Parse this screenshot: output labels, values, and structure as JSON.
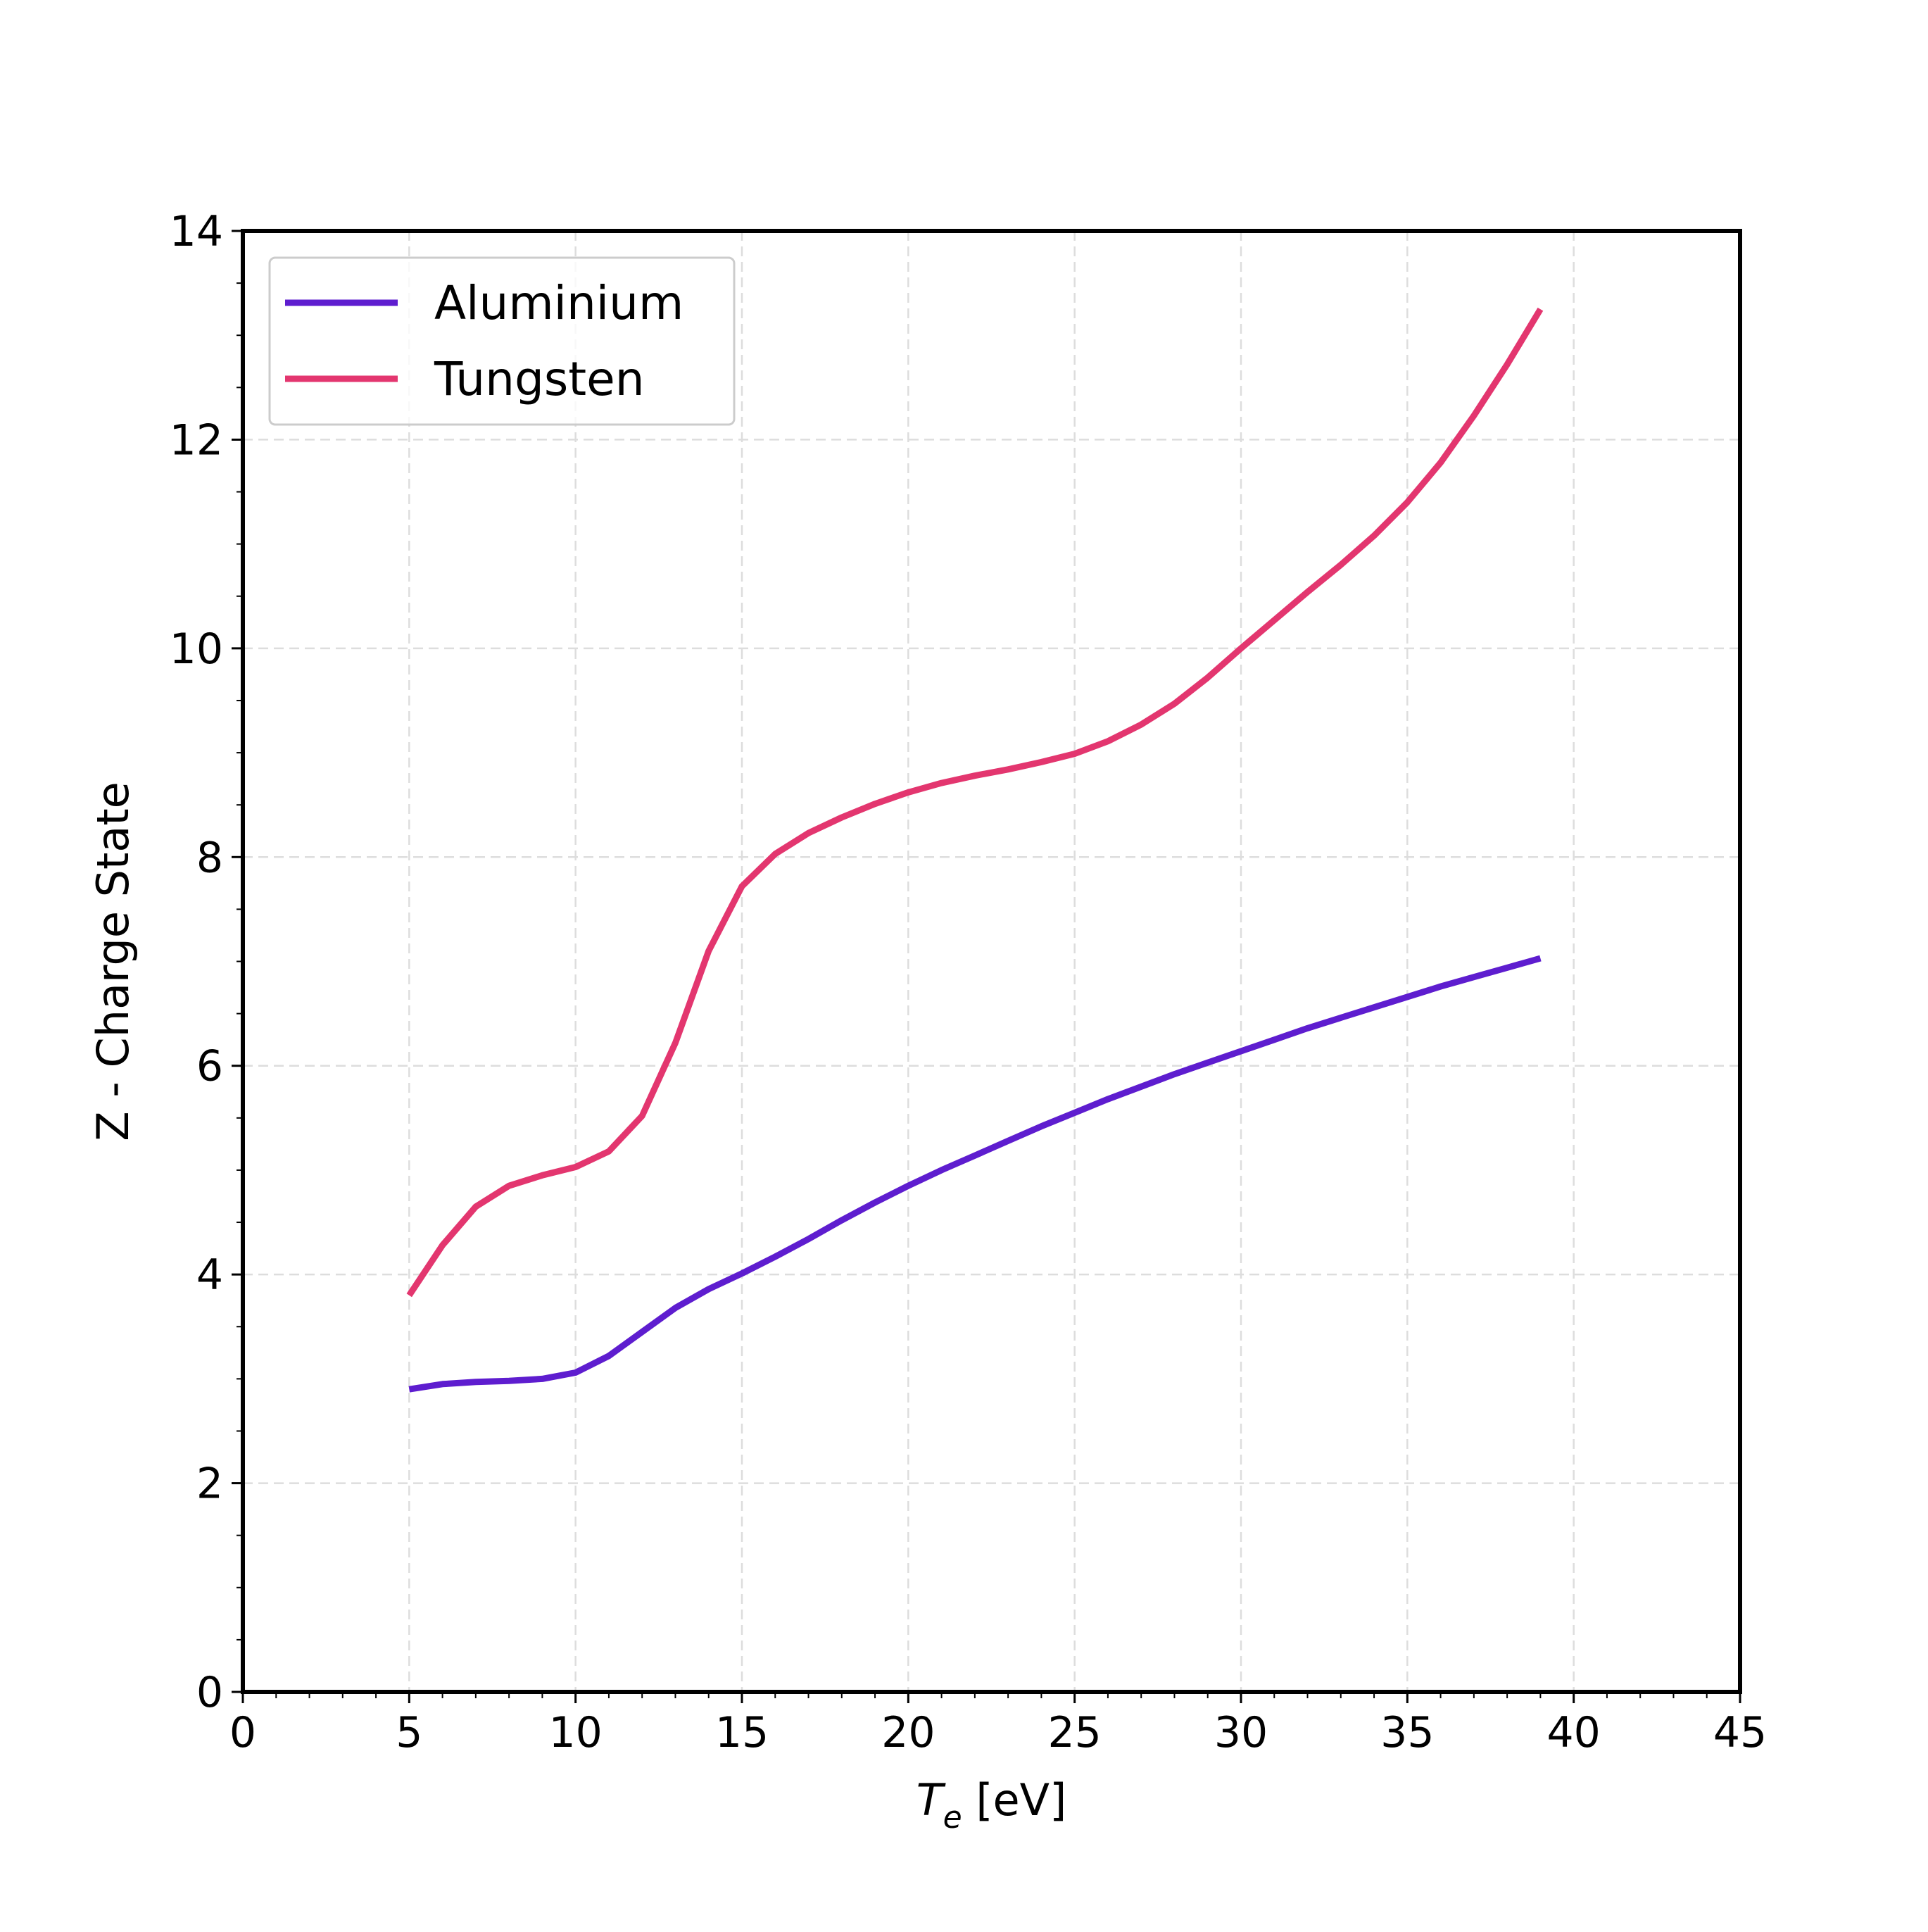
{
  "chart_data": {
    "type": "line",
    "xlabel": {
      "symbol": "T",
      "subscript": "e",
      "unit": " [eV]"
    },
    "ylabel": "Z - Charge State",
    "xlim": [
      0,
      45
    ],
    "ylim": [
      0,
      14
    ],
    "xticks": [
      "0",
      "5",
      "10",
      "15",
      "20",
      "25",
      "30",
      "35",
      "40",
      "45"
    ],
    "yticks": [
      "0",
      "2",
      "4",
      "6",
      "8",
      "10",
      "12",
      "14"
    ],
    "grid": true,
    "legend_position": "top-left",
    "series": [
      {
        "name": "Aluminium",
        "color": "#5e1dcf",
        "x": [
          5,
          6,
          7,
          8,
          9,
          10,
          11,
          12,
          13,
          14,
          15,
          16,
          17,
          18,
          19,
          20,
          21,
          22,
          23,
          24,
          25,
          26,
          27,
          28,
          29,
          30,
          31,
          32,
          33,
          34,
          35,
          36,
          37,
          38,
          39
        ],
        "y": [
          2.9,
          2.95,
          2.97,
          2.98,
          3.0,
          3.06,
          3.22,
          3.45,
          3.68,
          3.86,
          4.01,
          4.17,
          4.34,
          4.52,
          4.69,
          4.85,
          5.0,
          5.14,
          5.28,
          5.42,
          5.55,
          5.68,
          5.8,
          5.92,
          6.03,
          6.14,
          6.25,
          6.36,
          6.46,
          6.56,
          6.66,
          6.76,
          6.85,
          6.94,
          7.03
        ]
      },
      {
        "name": "Tungsten",
        "color": "#e3366f",
        "x": [
          5,
          6,
          7,
          8,
          9,
          10,
          11,
          12,
          13,
          14,
          15,
          16,
          17,
          18,
          19,
          20,
          21,
          22,
          23,
          24,
          25,
          26,
          27,
          28,
          29,
          30,
          31,
          32,
          33,
          34,
          35,
          36,
          37,
          38,
          39
        ],
        "y": [
          3.8,
          4.28,
          4.65,
          4.85,
          4.95,
          5.03,
          5.18,
          5.52,
          6.22,
          7.1,
          7.72,
          8.03,
          8.23,
          8.38,
          8.51,
          8.62,
          8.71,
          8.78,
          8.84,
          8.91,
          8.99,
          9.11,
          9.27,
          9.47,
          9.72,
          10.0,
          10.27,
          10.54,
          10.8,
          11.08,
          11.4,
          11.78,
          12.23,
          12.72,
          13.25
        ]
      }
    ]
  }
}
